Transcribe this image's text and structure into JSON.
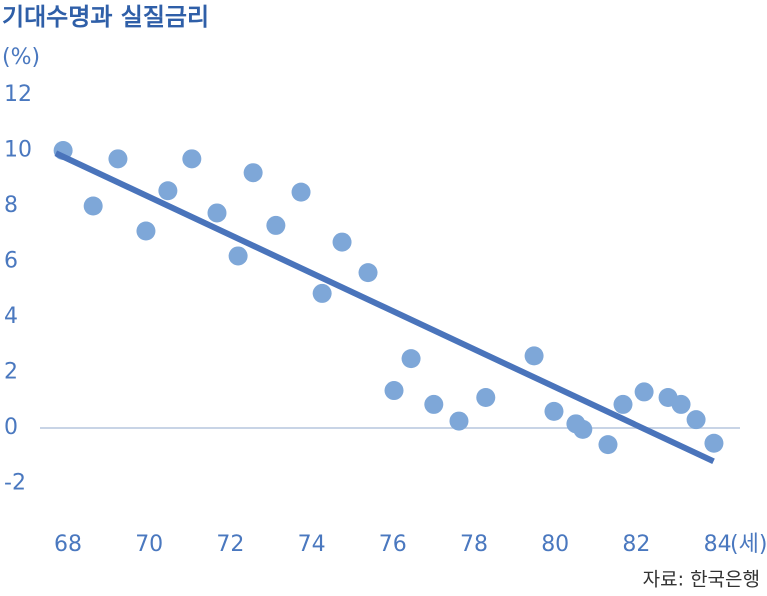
{
  "chart_data": {
    "type": "scatter",
    "title": "기대수명과 실질금리",
    "y_unit_label": "(%)",
    "x_unit_label": "(세)",
    "source": "자료: 한국은행",
    "x": [
      67.88,
      68.62,
      69.23,
      69.92,
      70.46,
      71.05,
      71.67,
      72.19,
      72.56,
      73.12,
      73.74,
      74.26,
      74.75,
      75.39,
      76.03,
      76.45,
      77.01,
      77.63,
      78.29,
      79.48,
      79.97,
      80.51,
      80.68,
      81.3,
      81.67,
      82.19,
      82.78,
      83.1,
      83.47,
      83.91
    ],
    "values": [
      10.0,
      8.0,
      9.7,
      7.1,
      8.55,
      9.7,
      7.75,
      6.2,
      9.2,
      7.3,
      8.5,
      4.85,
      6.7,
      5.6,
      1.35,
      2.5,
      0.85,
      0.25,
      1.1,
      2.6,
      0.6,
      0.15,
      -0.05,
      -0.6,
      0.85,
      1.3,
      1.1,
      0.85,
      0.3,
      -0.55
    ],
    "color": "#7ea7d8",
    "trendline": {
      "x": [
        67.7,
        83.9
      ],
      "values": [
        9.9,
        -1.2
      ],
      "color": "#4a74bb"
    },
    "xlim": [
      67,
      85
    ],
    "ylim": [
      -3,
      13
    ],
    "xticks": [
      68,
      70,
      72,
      74,
      76,
      78,
      80,
      82,
      84
    ],
    "yticks": [
      -2,
      0,
      2,
      4,
      6,
      8,
      10,
      12
    ],
    "zero_line": true
  }
}
